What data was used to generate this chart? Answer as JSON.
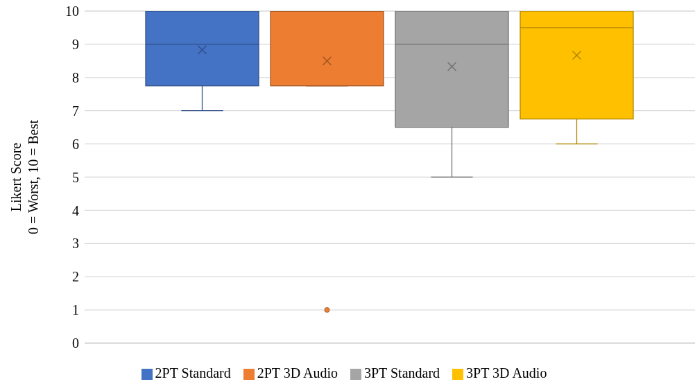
{
  "chart_data": {
    "type": "box",
    "ylabel": "Likert Score\n0 = Worst, 10 = Best",
    "categories": [
      null
    ],
    "series": [
      {
        "name": "2PT Standard",
        "color": "#4472c4",
        "boxes": [
          {
            "low": 7,
            "q1": 7.75,
            "median": 9,
            "q3": 10,
            "high": 10,
            "mean": 8.83
          }
        ]
      },
      {
        "name": "2PT 3D Audio",
        "color": "#ed7d31",
        "boxes": [
          {
            "low": 7.75,
            "q1": 7.75,
            "median": 10,
            "q3": 10,
            "high": 10,
            "mean": 8.5,
            "outliers": [
              1
            ]
          }
        ]
      },
      {
        "name": "3PT Standard",
        "color": "#a5a5a5",
        "boxes": [
          {
            "low": 5,
            "q1": 6.5,
            "median": 9,
            "q3": 10,
            "high": 10,
            "mean": 8.33
          }
        ]
      },
      {
        "name": "3PT 3D Audio",
        "color": "#ffc000",
        "boxes": [
          {
            "low": 6,
            "q1": 6.75,
            "median": 9.5,
            "q3": 10,
            "high": 10,
            "mean": 8.67
          }
        ]
      }
    ],
    "ylim": [
      0,
      10
    ],
    "yticks": [
      0,
      1,
      2,
      3,
      4,
      5,
      6,
      7,
      8,
      9,
      10
    ],
    "grid": "y",
    "legend": "bottom"
  }
}
